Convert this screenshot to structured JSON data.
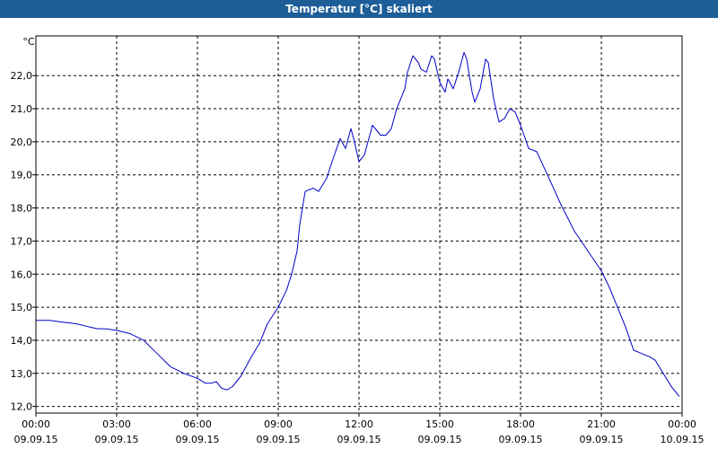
{
  "window": {
    "title": "Temperatur [°C] skaliert"
  },
  "chart_data": {
    "type": "line",
    "title": "Temperatur [°C] skaliert",
    "ylabel": "°C",
    "xlabel": "",
    "ylim": [
      11.8,
      23.2
    ],
    "xlim": [
      0,
      24
    ],
    "grid": true,
    "colors": {
      "line": "#0000c8",
      "grid": "#000000",
      "frame": "#000000",
      "header": "#1d5e99"
    },
    "y_ticks": [
      "12,0",
      "13,0",
      "14,0",
      "15,0",
      "16,0",
      "17,0",
      "18,0",
      "19,0",
      "20,0",
      "21,0",
      "22,0"
    ],
    "y_tick_values": [
      12,
      13,
      14,
      15,
      16,
      17,
      18,
      19,
      20,
      21,
      22
    ],
    "x_ticks": [
      {
        "time": "00:00",
        "date": "09.09.15"
      },
      {
        "time": "03:00",
        "date": "09.09.15"
      },
      {
        "time": "06:00",
        "date": "09.09.15"
      },
      {
        "time": "09:00",
        "date": "09.09.15"
      },
      {
        "time": "12:00",
        "date": "09.09.15"
      },
      {
        "time": "15:00",
        "date": "09.09.15"
      },
      {
        "time": "18:00",
        "date": "09.09.15"
      },
      {
        "time": "21:00",
        "date": "09.09.15"
      },
      {
        "time": "00:00",
        "date": "10.09.15"
      }
    ],
    "x_tick_values": [
      0,
      3,
      6,
      9,
      12,
      15,
      18,
      21,
      24
    ],
    "series": [
      {
        "x": [
          0.0,
          0.5,
          1.0,
          1.5,
          2.0,
          2.3,
          2.6,
          3.0,
          3.5,
          4.0,
          4.5,
          5.0,
          5.5,
          6.0,
          6.3,
          6.5,
          6.7,
          6.9,
          7.1,
          7.3,
          7.6,
          8.0,
          8.3,
          8.6,
          9.0,
          9.3,
          9.5,
          9.7,
          9.8,
          10.0,
          10.3,
          10.5,
          10.8,
          11.0,
          11.3,
          11.5,
          11.7,
          11.8,
          12.0,
          12.2,
          12.5,
          12.8,
          13.0,
          13.2,
          13.4,
          13.7,
          13.8,
          14.0,
          14.2,
          14.3,
          14.5,
          14.7,
          14.8,
          15.0,
          15.2,
          15.3,
          15.5,
          15.7,
          15.9,
          16.0,
          16.2,
          16.3,
          16.5,
          16.7,
          16.8,
          17.0,
          17.2,
          17.4,
          17.6,
          17.8,
          18.0,
          18.3,
          18.6,
          19.0,
          19.5,
          20.0,
          20.5,
          21.0,
          21.3,
          21.6,
          21.9,
          22.2,
          22.5,
          22.8,
          23.0,
          23.3,
          23.6,
          23.9
        ],
        "values": [
          14.6,
          14.6,
          14.55,
          14.5,
          14.4,
          14.35,
          14.35,
          14.3,
          14.2,
          14.0,
          13.6,
          13.2,
          13.0,
          12.85,
          12.7,
          12.7,
          12.75,
          12.55,
          12.5,
          12.6,
          12.9,
          13.5,
          13.9,
          14.5,
          15.0,
          15.5,
          16.0,
          16.7,
          17.5,
          18.5,
          18.6,
          18.5,
          18.9,
          19.4,
          20.1,
          19.8,
          20.4,
          20.1,
          19.4,
          19.6,
          20.5,
          20.2,
          20.2,
          20.4,
          21.0,
          21.6,
          22.1,
          22.6,
          22.4,
          22.2,
          22.1,
          22.6,
          22.5,
          21.8,
          21.5,
          21.9,
          21.6,
          22.1,
          22.7,
          22.5,
          21.5,
          21.2,
          21.6,
          22.5,
          22.4,
          21.3,
          20.6,
          20.7,
          21.0,
          20.9,
          20.5,
          19.8,
          19.7,
          19.0,
          18.1,
          17.3,
          16.7,
          16.1,
          15.6,
          15.0,
          14.4,
          13.7,
          13.6,
          13.5,
          13.4,
          13.0,
          12.6,
          12.3
        ]
      }
    ]
  }
}
